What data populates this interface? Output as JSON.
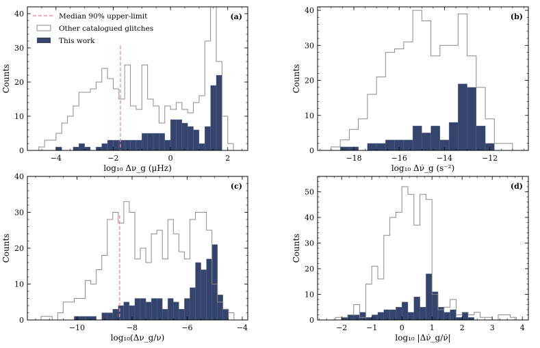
{
  "chart_data": [
    {
      "type": "histogram",
      "panel_label": "(a)",
      "xlabel": "log₁₀ Δν_g (μHz)",
      "ylabel": "Counts",
      "xlim": [
        -5.0,
        2.7
      ],
      "ylim": [
        0,
        42
      ],
      "xticks": [
        -4,
        -2,
        0,
        2
      ],
      "yticks": [
        0,
        10,
        20,
        30,
        40
      ],
      "bin_edges": [
        -4.6,
        -4.4,
        -4.2,
        -4.0,
        -3.8,
        -3.6,
        -3.4,
        -3.2,
        -3.0,
        -2.8,
        -2.6,
        -2.4,
        -2.2,
        -2.0,
        -1.8,
        -1.6,
        -1.4,
        -1.2,
        -1.0,
        -0.8,
        -0.6,
        -0.4,
        -0.2,
        0.0,
        0.2,
        0.4,
        0.6,
        0.8,
        1.0,
        1.2,
        1.4,
        1.6,
        1.8,
        2.0,
        2.2
      ],
      "vline": {
        "x": -1.75,
        "label": "Median 90% upper-limit"
      },
      "series": [
        {
          "name": "Other catalogued glitches",
          "style": "step",
          "values": [
            1,
            3,
            3,
            5,
            8,
            10,
            13,
            17,
            17,
            18,
            20,
            24,
            21,
            18,
            15,
            25,
            13,
            12,
            25,
            15,
            13,
            8,
            13,
            12,
            14,
            12,
            11,
            14,
            16,
            32,
            42,
            26,
            10,
            2
          ]
        },
        {
          "name": "This work",
          "style": "filled",
          "values": [
            0,
            0,
            0,
            1,
            0,
            0,
            1,
            2,
            1,
            0,
            1,
            2,
            3,
            3,
            3,
            3,
            3,
            3,
            5,
            5,
            5,
            5,
            3,
            9,
            9,
            8,
            7,
            6,
            2,
            7,
            19,
            22,
            0,
            0
          ]
        }
      ]
    },
    {
      "type": "histogram",
      "panel_label": "(b)",
      "xlabel": "log₁₀ Δν̇_g (s⁻²)",
      "ylabel": "Counts",
      "xlim": [
        -19.6,
        -10.3
      ],
      "ylim": [
        0,
        41
      ],
      "xticks": [
        -18,
        -16,
        -14,
        -12
      ],
      "yticks": [
        0,
        10,
        20,
        30,
        40
      ],
      "bin_edges": [
        -19.0,
        -18.6,
        -18.2,
        -17.8,
        -17.4,
        -17.0,
        -16.6,
        -16.2,
        -15.8,
        -15.4,
        -15.0,
        -14.6,
        -14.2,
        -13.8,
        -13.4,
        -13.0,
        -12.6,
        -12.2,
        -11.8,
        -11.4,
        -11.0
      ],
      "series": [
        {
          "name": "Other catalogued glitches",
          "style": "step",
          "values": [
            1,
            3,
            6,
            9,
            16,
            21,
            28,
            29,
            31,
            40,
            37,
            27,
            30,
            30,
            39,
            27,
            18,
            9,
            2,
            2
          ]
        },
        {
          "name": "This work",
          "style": "filled",
          "values": [
            0,
            1,
            1,
            0,
            2,
            2,
            3,
            3,
            3,
            7,
            5,
            7,
            3,
            8,
            19,
            18,
            7,
            2,
            0,
            0
          ]
        }
      ]
    },
    {
      "type": "histogram",
      "panel_label": "(c)",
      "xlabel": "log₁₀(Δν_g/ν)",
      "ylabel": "Counts",
      "xlim": [
        -11.8,
        -3.8
      ],
      "ylim": [
        0,
        40
      ],
      "xticks": [
        -10,
        -8,
        -6,
        -4
      ],
      "yticks": [
        0,
        10,
        20,
        30,
        40
      ],
      "bin_edges": [
        -11.3,
        -11.1,
        -10.9,
        -10.7,
        -10.5,
        -10.3,
        -10.1,
        -9.9,
        -9.7,
        -9.5,
        -9.3,
        -9.1,
        -8.9,
        -8.7,
        -8.5,
        -8.3,
        -8.1,
        -7.9,
        -7.7,
        -7.5,
        -7.3,
        -7.1,
        -6.9,
        -6.7,
        -6.5,
        -6.3,
        -6.1,
        -5.9,
        -5.7,
        -5.5,
        -5.3,
        -5.1,
        -4.9,
        -4.7,
        -4.5,
        -4.3
      ],
      "vline": {
        "x": -8.45,
        "label": ""
      },
      "series": [
        {
          "name": "Other catalogued glitches",
          "style": "step",
          "values": [
            1,
            1,
            0,
            2,
            5,
            5,
            6,
            6,
            11,
            10,
            14,
            18,
            28,
            30,
            27,
            33,
            30,
            17,
            20,
            16,
            24,
            25,
            17,
            28,
            24,
            19,
            17,
            28,
            30,
            30,
            25,
            10,
            5,
            3,
            2
          ]
        },
        {
          "name": "This work",
          "style": "filled",
          "values": [
            0,
            0,
            0,
            0,
            0,
            0,
            1,
            1,
            1,
            1,
            0,
            2,
            2,
            3,
            4,
            5,
            4,
            6,
            6,
            5,
            6,
            6,
            3,
            6,
            5,
            3,
            6,
            9,
            16,
            14,
            17,
            21,
            7,
            3,
            0
          ]
        }
      ]
    },
    {
      "type": "histogram",
      "panel_label": "(d)",
      "xlabel": "log₁₀ |Δν̇_g/ν̇|",
      "ylabel": "Counts",
      "xlim": [
        -2.8,
        4.2
      ],
      "ylim": [
        0,
        56
      ],
      "xticks": [
        -2,
        -1,
        0,
        1,
        2,
        3,
        4
      ],
      "yticks": [
        0,
        10,
        20,
        30,
        40,
        50
      ],
      "bin_edges": [
        -2.2,
        -2.0,
        -1.8,
        -1.6,
        -1.4,
        -1.2,
        -1.0,
        -0.8,
        -0.6,
        -0.4,
        -0.2,
        0.0,
        0.2,
        0.4,
        0.6,
        0.8,
        1.0,
        1.2,
        1.4,
        1.6,
        1.8,
        2.0,
        2.2,
        2.4,
        2.6,
        2.8,
        3.0,
        3.2,
        3.4,
        3.6,
        3.8
      ],
      "series": [
        {
          "name": "Other catalogued glitches",
          "style": "step",
          "values": [
            1,
            1,
            2,
            6,
            1,
            14,
            21,
            16,
            33,
            40,
            42,
            52,
            49,
            37,
            49,
            47,
            10,
            4,
            5,
            8,
            2,
            3,
            2,
            3,
            1,
            1,
            0,
            2,
            2,
            1
          ]
        },
        {
          "name": "This work",
          "style": "filled",
          "values": [
            0,
            1,
            2,
            2,
            3,
            1,
            2,
            3,
            4,
            4,
            5,
            7,
            3,
            9,
            5,
            18,
            11,
            5,
            3,
            4,
            1,
            3,
            1,
            0,
            0,
            0,
            0,
            0,
            0,
            0
          ]
        }
      ]
    }
  ],
  "legend": {
    "items": [
      "Median 90% upper-limit",
      "Other catalogued glitches",
      "This work"
    ]
  },
  "colors": {
    "filled": "#34446c",
    "filled_edge": "#5a6b91",
    "step": "#8a8a8a",
    "vline": "#f08aa3"
  }
}
